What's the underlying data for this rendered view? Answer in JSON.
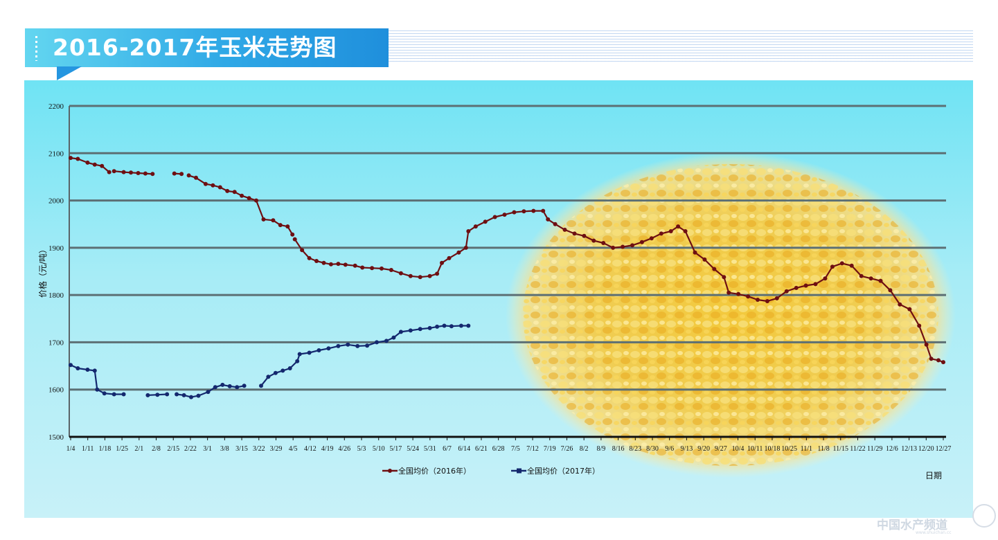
{
  "header": {
    "title": "2016-2017年玉米走势图"
  },
  "watermark": {
    "text": "中国水产频道",
    "sub": "www.shuichan.cc"
  },
  "colors": {
    "series_2016": "#6e0f12",
    "series_2017": "#14286e",
    "grid": "#5c6f74"
  },
  "chart_data": {
    "type": "line",
    "ylabel": "价格（元/吨）",
    "xlabel": "日期",
    "ylim": [
      1500,
      2200
    ],
    "yticks": [
      1500,
      1600,
      1700,
      1800,
      1900,
      2000,
      2100,
      2200
    ],
    "grid": true,
    "legend_position": "bottom",
    "x_tick_labels": [
      "1/4",
      "1/11",
      "1/18",
      "1/25",
      "2/1",
      "2/8",
      "2/15",
      "2/22",
      "3/1",
      "3/8",
      "3/15",
      "3/22",
      "3/29",
      "4/5",
      "4/12",
      "4/19",
      "4/26",
      "5/3",
      "5/10",
      "5/17",
      "5/24",
      "5/31",
      "6/7",
      "6/14",
      "6/21",
      "6/28",
      "7/5",
      "7/12",
      "7/19",
      "7/26",
      "8/2",
      "8/9",
      "8/16",
      "8/23",
      "8/30",
      "9/6",
      "9/13",
      "9/20",
      "9/27",
      "10/4",
      "10/11",
      "10/18",
      "10/25",
      "11/1",
      "11/8",
      "11/15",
      "11/22",
      "11/29",
      "12/6",
      "12/13",
      "12/20",
      "12/27"
    ],
    "series": [
      {
        "name": "全国均价（2016年）",
        "points": [
          [
            "1/4",
            2090
          ],
          [
            "1/7",
            2088
          ],
          [
            "1/11",
            2080
          ],
          [
            "1/14",
            2076
          ],
          [
            "1/17",
            2073
          ],
          [
            "1/20",
            2060
          ],
          [
            null,
            null
          ],
          [
            "1/22",
            2062
          ],
          [
            "1/26",
            2060
          ],
          [
            "1/29",
            2059
          ],
          [
            "2/1",
            2058
          ],
          [
            "2/4",
            2057
          ],
          [
            "2/7",
            2056
          ],
          [
            null,
            null
          ],
          [
            "2/16",
            2057
          ],
          [
            "2/19",
            2056
          ],
          [
            null,
            null
          ],
          [
            "2/22",
            2053
          ],
          [
            "2/25",
            2048
          ],
          [
            "2/29",
            2035
          ],
          [
            "3/3",
            2032
          ],
          [
            "3/6",
            2028
          ],
          [
            "3/9",
            2020
          ],
          [
            "3/12",
            2018
          ],
          [
            "3/15",
            2010
          ],
          [
            "3/18",
            2005
          ],
          [
            "3/21",
            2000
          ],
          [
            "3/24",
            1960
          ],
          [
            "3/28",
            1958
          ],
          [
            "3/31",
            1948
          ],
          [
            "4/3",
            1945
          ],
          [
            "4/5",
            1928
          ],
          [
            null,
            null
          ],
          [
            "4/6",
            1918
          ],
          [
            "4/9",
            1895
          ],
          [
            "4/12",
            1878
          ],
          [
            "4/15",
            1872
          ],
          [
            "4/18",
            1868
          ],
          [
            "4/21",
            1865
          ],
          [
            "4/24",
            1866
          ],
          [
            "4/27",
            1864
          ],
          [
            "5/1",
            1862
          ],
          [
            "5/4",
            1858
          ],
          [
            "5/8",
            1857
          ],
          [
            "5/12",
            1856
          ],
          [
            "5/16",
            1853
          ],
          [
            "5/20",
            1846
          ],
          [
            "5/24",
            1840
          ],
          [
            "5/28",
            1838
          ],
          [
            "6/1",
            1840
          ],
          [
            "6/4",
            1845
          ],
          [
            "6/6",
            1868
          ],
          [
            "6/9",
            1878
          ],
          [
            "6/13",
            1890
          ],
          [
            "6/16",
            1900
          ],
          [
            "6/17",
            1935
          ],
          [
            "6/20",
            1945
          ],
          [
            "6/24",
            1955
          ],
          [
            "6/28",
            1965
          ],
          [
            "7/2",
            1970
          ],
          [
            "7/6",
            1975
          ],
          [
            "7/10",
            1977
          ],
          [
            "7/14",
            1978
          ],
          [
            "7/18",
            1978
          ],
          [
            "7/20",
            1960
          ],
          [
            "7/23",
            1950
          ],
          [
            "7/27",
            1938
          ],
          [
            "7/31",
            1930
          ],
          [
            "8/4",
            1925
          ],
          [
            "8/8",
            1915
          ],
          [
            "8/12",
            1910
          ],
          [
            "8/16",
            1900
          ],
          [
            "8/20",
            1902
          ],
          [
            "8/24",
            1905
          ],
          [
            "8/28",
            1912
          ],
          [
            "9/1",
            1920
          ],
          [
            "9/5",
            1930
          ],
          [
            "9/9",
            1935
          ],
          [
            "9/12",
            1945
          ],
          [
            "9/15",
            1935
          ],
          [
            "9/19",
            1890
          ],
          [
            "9/23",
            1875
          ],
          [
            "9/27",
            1855
          ],
          [
            "10/1",
            1838
          ],
          [
            "10/3",
            1805
          ],
          [
            "10/7",
            1802
          ],
          [
            "10/11",
            1797
          ],
          [
            "10/15",
            1790
          ],
          [
            "10/19",
            1787
          ],
          [
            "10/23",
            1793
          ],
          [
            "10/27",
            1808
          ],
          [
            "10/31",
            1815
          ],
          [
            "11/4",
            1820
          ],
          [
            "11/8",
            1823
          ],
          [
            "11/12",
            1835
          ],
          [
            "11/15",
            1860
          ],
          [
            "11/19",
            1867
          ],
          [
            "11/23",
            1862
          ],
          [
            "11/27",
            1840
          ],
          [
            "12/1",
            1835
          ],
          [
            "12/5",
            1830
          ],
          [
            "12/9",
            1810
          ],
          [
            "12/13",
            1780
          ],
          [
            "12/17",
            1770
          ],
          [
            "12/21",
            1735
          ],
          [
            "12/24",
            1695
          ],
          [
            "12/26",
            1665
          ],
          [
            "12/29",
            1662
          ],
          [
            "12/31",
            1658
          ]
        ]
      },
      {
        "name": "全国均价（2017年）",
        "points": [
          [
            "1/4",
            1652
          ],
          [
            "1/7",
            1645
          ],
          [
            "1/11",
            1642
          ],
          [
            "1/14",
            1640
          ],
          [
            "1/15",
            1600
          ],
          [
            "1/18",
            1592
          ],
          [
            "1/22",
            1590
          ],
          [
            "1/26",
            1590
          ],
          [
            null,
            null
          ],
          [
            "2/5",
            1588
          ],
          [
            "2/9",
            1589
          ],
          [
            "2/13",
            1590
          ],
          [
            null,
            null
          ],
          [
            "2/17",
            1590
          ],
          [
            "2/20",
            1588
          ],
          [
            "2/23",
            1584
          ],
          [
            "2/26",
            1587
          ],
          [
            "3/1",
            1595
          ],
          [
            "3/4",
            1605
          ],
          [
            "3/7",
            1610
          ],
          [
            "3/10",
            1607
          ],
          [
            "3/13",
            1605
          ],
          [
            "3/16",
            1608
          ],
          [
            null,
            null
          ],
          [
            "3/23",
            1608
          ],
          [
            "3/26",
            1627
          ],
          [
            "3/29",
            1635
          ],
          [
            "4/1",
            1640
          ],
          [
            "4/4",
            1645
          ],
          [
            "4/7",
            1660
          ],
          [
            "4/8",
            1675
          ],
          [
            "4/12",
            1678
          ],
          [
            "4/16",
            1683
          ],
          [
            "4/20",
            1687
          ],
          [
            "4/24",
            1692
          ],
          [
            "4/28",
            1695
          ],
          [
            "5/2",
            1692
          ],
          [
            "5/6",
            1693
          ],
          [
            "5/10",
            1700
          ],
          [
            "5/14",
            1703
          ],
          [
            "5/17",
            1710
          ],
          [
            "5/20",
            1722
          ],
          [
            "5/24",
            1725
          ],
          [
            "5/28",
            1728
          ],
          [
            "6/1",
            1730
          ],
          [
            "6/4",
            1733
          ],
          [
            "6/7",
            1735
          ],
          [
            "6/10",
            1734
          ],
          [
            "6/14",
            1735
          ],
          [
            "6/17",
            1735
          ]
        ]
      }
    ]
  }
}
